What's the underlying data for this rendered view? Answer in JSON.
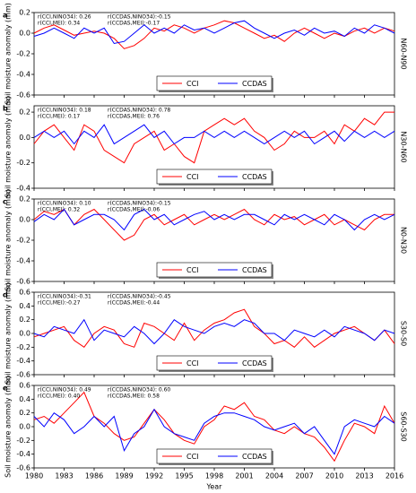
{
  "chart_data": [
    {
      "type": "line",
      "panel": "a",
      "region": "N60-N90",
      "ylabel": "Soil moisture anomaly (mm)",
      "x": [
        1980,
        1981,
        1982,
        1983,
        1984,
        1985,
        1986,
        1987,
        1988,
        1989,
        1990,
        1991,
        1992,
        1993,
        1994,
        1995,
        1996,
        1997,
        1998,
        1999,
        2000,
        2001,
        2002,
        2003,
        2004,
        2005,
        2006,
        2007,
        2008,
        2009,
        2010,
        2011,
        2012,
        2013,
        2014,
        2015,
        2016
      ],
      "xlim": [
        1980,
        2016
      ],
      "xticks": [
        1980,
        1983,
        1986,
        1989,
        1992,
        1995,
        1998,
        2001,
        2004,
        2007,
        2010,
        2013,
        2016
      ],
      "ylim": [
        -0.6,
        0.2
      ],
      "yticks": [
        -0.6,
        -0.4,
        -0.2,
        {
          "value": 0,
          "label": "0.0"
        },
        0.2
      ],
      "legend": "lower center",
      "series": [
        {
          "name": "CCI",
          "color": "#ff0000",
          "stats": [
            "r(CCI,NINO34):  0.26",
            "r(CCI,MEI):  0.34"
          ],
          "values": [
            0.0,
            0.05,
            0.08,
            0.03,
            -0.02,
            0.0,
            0.02,
            0.0,
            -0.05,
            -0.15,
            -0.12,
            -0.05,
            0.05,
            0.02,
            0.08,
            0.05,
            0.0,
            0.05,
            0.08,
            0.12,
            0.1,
            0.05,
            0.0,
            -0.05,
            -0.02,
            -0.08,
            0.0,
            0.05,
            0.0,
            -0.05,
            0.0,
            -0.03,
            0.02,
            0.05,
            0.0,
            0.05,
            0.02
          ]
        },
        {
          "name": "CCDAS",
          "color": "#0000ff",
          "stats": [
            "r(CCDAS,NINO34):-0.15",
            "r(CCDAS,MEI):-0.17"
          ],
          "values": [
            -0.03,
            0.0,
            0.05,
            0.0,
            -0.05,
            0.05,
            0.0,
            0.05,
            -0.1,
            -0.08,
            0.0,
            0.08,
            0.0,
            0.05,
            0.0,
            0.08,
            0.03,
            0.05,
            0.0,
            0.05,
            0.1,
            0.12,
            0.05,
            0.0,
            -0.05,
            0.0,
            0.03,
            -0.02,
            0.05,
            0.0,
            0.02,
            -0.03,
            0.05,
            0.0,
            0.08,
            0.05,
            0.0
          ]
        }
      ]
    },
    {
      "type": "line",
      "panel": "b",
      "region": "N30-N60",
      "ylabel": "Soil moisture anomaly (mm)",
      "x": [
        1980,
        1981,
        1982,
        1983,
        1984,
        1985,
        1986,
        1987,
        1988,
        1989,
        1990,
        1991,
        1992,
        1993,
        1994,
        1995,
        1996,
        1997,
        1998,
        1999,
        2000,
        2001,
        2002,
        2003,
        2004,
        2005,
        2006,
        2007,
        2008,
        2009,
        2010,
        2011,
        2012,
        2013,
        2014,
        2015,
        2016
      ],
      "xlim": [
        1980,
        2016
      ],
      "xticks": [
        1980,
        1983,
        1986,
        1989,
        1992,
        1995,
        1998,
        2001,
        2004,
        2007,
        2010,
        2013,
        2016
      ],
      "ylim": [
        -0.4,
        0.25
      ],
      "yticks": [
        -0.4,
        -0.2,
        {
          "value": 0,
          "label": "0.0"
        },
        0.2
      ],
      "legend": "lower center",
      "series": [
        {
          "name": "CCI",
          "color": "#ff0000",
          "stats": [
            "r(CCI,NINO34):  0.18",
            "r(CCI,MEI):  0.17"
          ],
          "values": [
            -0.05,
            0.05,
            0.1,
            0.0,
            -0.1,
            0.1,
            0.05,
            -0.1,
            -0.15,
            -0.2,
            -0.05,
            0.0,
            0.05,
            -0.1,
            -0.05,
            -0.15,
            -0.2,
            0.05,
            0.1,
            0.15,
            0.1,
            0.15,
            0.05,
            0.0,
            -0.1,
            -0.05,
            0.05,
            0.0,
            0.0,
            0.05,
            -0.05,
            0.1,
            0.05,
            0.15,
            0.1,
            0.2,
            0.2
          ]
        },
        {
          "name": "CCDAS",
          "color": "#0000ff",
          "stats": [
            "r(CCDAS,NINO34):  0.78",
            "r(CCDAS,MEI):  0.76"
          ],
          "values": [
            0.0,
            0.05,
            0.0,
            0.05,
            -0.05,
            0.05,
            0.0,
            0.1,
            -0.05,
            0.0,
            0.05,
            0.1,
            0.0,
            0.05,
            -0.05,
            0.0,
            0.0,
            0.05,
            0.0,
            0.05,
            0.0,
            0.05,
            0.0,
            -0.05,
            0.0,
            0.05,
            0.0,
            0.05,
            -0.05,
            0.0,
            0.05,
            -0.03,
            0.05,
            0.0,
            0.05,
            0.0,
            0.05
          ]
        }
      ]
    },
    {
      "type": "line",
      "panel": "c",
      "region": "N0-N30",
      "ylabel": "Soil moisture anomaly (mm)",
      "x": [
        1980,
        1981,
        1982,
        1983,
        1984,
        1985,
        1986,
        1987,
        1988,
        1989,
        1990,
        1991,
        1992,
        1993,
        1994,
        1995,
        1996,
        1997,
        1998,
        1999,
        2000,
        2001,
        2002,
        2003,
        2004,
        2005,
        2006,
        2007,
        2008,
        2009,
        2010,
        2011,
        2012,
        2013,
        2014,
        2015,
        2016
      ],
      "xlim": [
        1980,
        2016
      ],
      "xticks": [
        1980,
        1983,
        1986,
        1989,
        1992,
        1995,
        1998,
        2001,
        2004,
        2007,
        2010,
        2013,
        2016
      ],
      "ylim": [
        -0.6,
        0.2
      ],
      "yticks": [
        -0.6,
        -0.4,
        -0.2,
        {
          "value": 0,
          "label": "0.0"
        },
        0.2
      ],
      "legend": "lower center",
      "series": [
        {
          "name": "CCI",
          "color": "#ff0000",
          "stats": [
            "r(CCI,NINO34):  0.10",
            "r(CCI,MEI):  0.32"
          ],
          "values": [
            0.0,
            0.08,
            0.05,
            0.1,
            -0.05,
            0.05,
            0.1,
            0.0,
            -0.1,
            -0.2,
            -0.15,
            0.0,
            0.05,
            -0.05,
            0.0,
            0.05,
            -0.05,
            0.0,
            0.05,
            0.0,
            0.05,
            0.1,
            0.0,
            -0.05,
            0.05,
            0.0,
            0.03,
            -0.05,
            0.0,
            0.05,
            -0.05,
            0.0,
            -0.05,
            -0.1,
            0.0,
            0.05,
            0.05
          ]
        },
        {
          "name": "CCDAS",
          "color": "#0000ff",
          "stats": [
            "r(CCDAS,NINO34):-0.15",
            "r(CCDAS,MEI):-0.06"
          ],
          "values": [
            -0.02,
            0.05,
            0.0,
            0.1,
            -0.05,
            0.0,
            0.05,
            0.05,
            0.0,
            -0.1,
            0.05,
            0.1,
            0.0,
            0.05,
            -0.05,
            0.0,
            0.05,
            0.08,
            0.0,
            0.05,
            0.0,
            0.05,
            0.05,
            0.0,
            -0.05,
            0.05,
            0.0,
            0.05,
            0.0,
            -0.05,
            0.05,
            0.0,
            -0.1,
            0.0,
            0.05,
            0.0,
            0.05
          ]
        }
      ]
    },
    {
      "type": "line",
      "panel": "d",
      "region": "S30-S0",
      "ylabel": "Soil moisture anomaly (mm)",
      "x": [
        1980,
        1981,
        1982,
        1983,
        1984,
        1985,
        1986,
        1987,
        1988,
        1989,
        1990,
        1991,
        1992,
        1993,
        1994,
        1995,
        1996,
        1997,
        1998,
        1999,
        2000,
        2001,
        2002,
        2003,
        2004,
        2005,
        2006,
        2007,
        2008,
        2009,
        2010,
        2011,
        2012,
        2013,
        2014,
        2015,
        2016
      ],
      "xlim": [
        1980,
        2016
      ],
      "xticks": [
        1980,
        1983,
        1986,
        1989,
        1992,
        1995,
        1998,
        2001,
        2004,
        2007,
        2010,
        2013,
        2016
      ],
      "ylim": [
        -0.6,
        0.6
      ],
      "yticks": [
        -0.6,
        -0.4,
        -0.2,
        {
          "value": 0,
          "label": "0.0"
        },
        0.2,
        0.4,
        0.6
      ],
      "legend": "lower center",
      "series": [
        {
          "name": "CCI",
          "color": "#ff0000",
          "stats": [
            "r(CCI,NINO34):-0.31",
            "r(CCI,MEI):-0.27"
          ],
          "values": [
            -0.05,
            0.0,
            0.05,
            0.1,
            -0.1,
            -0.2,
            0.0,
            0.1,
            0.05,
            -0.15,
            -0.2,
            0.15,
            0.1,
            0.0,
            -0.1,
            0.15,
            -0.1,
            0.05,
            0.15,
            0.2,
            0.3,
            0.35,
            0.1,
            0.0,
            -0.15,
            -0.1,
            -0.2,
            -0.05,
            -0.2,
            -0.1,
            0.0,
            0.05,
            0.1,
            0.0,
            -0.1,
            0.05,
            -0.15
          ]
        },
        {
          "name": "CCDAS",
          "color": "#0000ff",
          "stats": [
            "r(CCDAS,NINO34):-0.45",
            "r(CCDAS,MEI):-0.44"
          ],
          "values": [
            0.0,
            -0.05,
            0.1,
            0.05,
            0.0,
            0.2,
            -0.1,
            0.05,
            0.0,
            -0.05,
            0.1,
            0.0,
            -0.15,
            0.0,
            0.2,
            0.1,
            0.05,
            0.0,
            0.1,
            0.15,
            0.1,
            0.2,
            0.15,
            0.0,
            0.0,
            -0.1,
            0.05,
            0.0,
            -0.05,
            0.05,
            -0.05,
            0.1,
            0.05,
            0.0,
            -0.1,
            0.05,
            0.0
          ]
        }
      ]
    },
    {
      "type": "line",
      "panel": "e",
      "region": "S60-S30",
      "ylabel": "Soil moisture anomaly (mm)",
      "xlabel": "Year",
      "x": [
        1980,
        1981,
        1982,
        1983,
        1984,
        1985,
        1986,
        1987,
        1988,
        1989,
        1990,
        1991,
        1992,
        1993,
        1994,
        1995,
        1996,
        1997,
        1998,
        1999,
        2000,
        2001,
        2002,
        2003,
        2004,
        2005,
        2006,
        2007,
        2008,
        2009,
        2010,
        2011,
        2012,
        2013,
        2014,
        2015,
        2016
      ],
      "xlim": [
        1980,
        2016
      ],
      "xticks": [
        1980,
        1983,
        1986,
        1989,
        1992,
        1995,
        1998,
        2001,
        2004,
        2007,
        2010,
        2013,
        2016
      ],
      "ylim": [
        -0.6,
        0.6
      ],
      "yticks": [
        -0.6,
        -0.4,
        -0.2,
        {
          "value": 0,
          "label": "0.0"
        },
        0.2,
        0.4,
        0.6
      ],
      "legend": "lower center",
      "series": [
        {
          "name": "CCI",
          "color": "#ff0000",
          "stats": [
            "r(CCI,NINO34):  0.49",
            "r(CCI,MEI):  0.40"
          ],
          "values": [
            0.1,
            0.15,
            0.05,
            0.2,
            0.35,
            0.5,
            0.15,
            0.05,
            -0.1,
            -0.2,
            -0.15,
            0.05,
            0.25,
            0.1,
            -0.1,
            -0.2,
            -0.25,
            0.0,
            0.1,
            0.3,
            0.25,
            0.35,
            0.15,
            0.1,
            -0.05,
            -0.1,
            0.0,
            -0.1,
            -0.15,
            -0.3,
            -0.5,
            -0.2,
            0.05,
            0.0,
            -0.1,
            0.3,
            0.05
          ]
        },
        {
          "name": "CCDAS",
          "color": "#0000ff",
          "stats": [
            "r(CCDAS,NINO34):  0.60",
            "r(CCDAS,MEI):  0.58"
          ],
          "values": [
            0.15,
            0.0,
            0.2,
            0.1,
            -0.1,
            0.0,
            0.15,
            0.0,
            0.15,
            -0.35,
            -0.1,
            0.0,
            0.25,
            0.0,
            -0.1,
            -0.15,
            -0.2,
            0.05,
            0.15,
            0.2,
            0.2,
            0.15,
            0.1,
            0.0,
            -0.05,
            0.0,
            0.05,
            -0.1,
            0.0,
            -0.2,
            -0.4,
            0.0,
            0.1,
            0.05,
            0.0,
            0.15,
            0.05
          ]
        }
      ]
    }
  ]
}
